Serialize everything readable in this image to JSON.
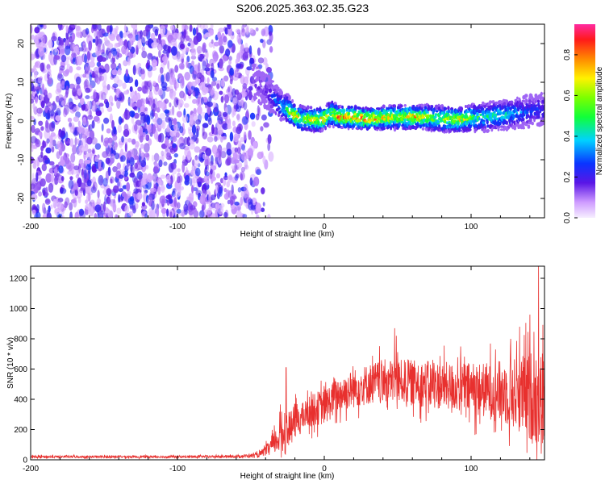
{
  "title": "S206.2025.363.02.35.G23",
  "colors": {
    "snr_line": "#e8302e",
    "spectrum_noise": "#7a2cf0",
    "axis": "#000000"
  },
  "chart_data": [
    {
      "type": "heatmap",
      "title": "S206.2025.363.02.35.G23",
      "xlabel": "Height of straight line (km)",
      "ylabel": "Frequency (Hz)",
      "xlim": [
        -200,
        150
      ],
      "ylim": [
        -25,
        25
      ],
      "x_ticks": [
        -200,
        -100,
        0,
        100
      ],
      "x_tick_labels": [
        "-200",
        "-100",
        "0",
        "100"
      ],
      "y_ticks": [
        -20,
        -10,
        0,
        10,
        20
      ],
      "y_tick_labels": [
        "-20",
        "-10",
        "0",
        "10",
        "20"
      ],
      "noise_region_x": [
        -200,
        -48
      ],
      "signal_track": {
        "x": [
          -48,
          -40,
          -35,
          -30,
          -25,
          -20,
          -15,
          -10,
          -5,
          0,
          5,
          10,
          20,
          30,
          40,
          50,
          60,
          70,
          80,
          90,
          100,
          110,
          120,
          130,
          140,
          150
        ],
        "freq": [
          10,
          8,
          6,
          4,
          3,
          1.5,
          0.5,
          0.5,
          0.3,
          0.5,
          2,
          1,
          1,
          0.5,
          0.8,
          1,
          1,
          1,
          0.5,
          0.3,
          0.8,
          1,
          1.5,
          2,
          2.5,
          3
        ],
        "amplitude": [
          0.15,
          0.2,
          0.3,
          0.4,
          0.5,
          0.9,
          0.6,
          0.8,
          0.7,
          0.9,
          0.6,
          0.9,
          0.8,
          0.95,
          0.8,
          0.7,
          0.85,
          0.7,
          0.6,
          0.8,
          0.6,
          0.5,
          0.5,
          0.4,
          0.3,
          0.3
        ]
      },
      "colorbar": {
        "label": "Normalized spectral amplitude",
        "range": [
          0,
          0.95
        ],
        "ticks": [
          0.0,
          0.2,
          0.4,
          0.6,
          0.8
        ],
        "tick_labels": [
          "0.0",
          "0.2",
          "0.4",
          "0.6",
          "0.8"
        ]
      }
    },
    {
      "type": "line",
      "xlabel": "Height of straight line (km)",
      "ylabel": "SNR (10 * v/v)",
      "xlim": [
        -200,
        150
      ],
      "ylim": [
        0,
        1280
      ],
      "x_ticks": [
        -200,
        -100,
        0,
        100
      ],
      "x_tick_labels": [
        "-200",
        "-100",
        "0",
        "100"
      ],
      "y_ticks": [
        0,
        200,
        400,
        600,
        800,
        1000,
        1200
      ],
      "y_tick_labels": [
        "0",
        "200",
        "400",
        "600",
        "800",
        "1000",
        "1200"
      ],
      "series": [
        {
          "name": "SNR",
          "envelope": {
            "x": [
              -200,
              -150,
              -100,
              -60,
              -45,
              -40,
              -35,
              -30,
              -28,
              -25,
              -22,
              -20,
              -15,
              -10,
              -5,
              0,
              10,
              20,
              30,
              40,
              50,
              60,
              70,
              80,
              90,
              100,
              110,
              120,
              130,
              140,
              148
            ],
            "baseline": [
              20,
              20,
              20,
              22,
              30,
              60,
              100,
              160,
              200,
              190,
              220,
              260,
              280,
              320,
              340,
              350,
              430,
              470,
              500,
              520,
              520,
              510,
              500,
              490,
              480,
              470,
              460,
              450,
              440,
              420,
              400
            ],
            "amplitude": [
              10,
              10,
              10,
              10,
              20,
              40,
              80,
              150,
              250,
              130,
              140,
              150,
              120,
              130,
              140,
              150,
              150,
              160,
              170,
              180,
              180,
              190,
              190,
              200,
              200,
              220,
              230,
              260,
              300,
              380,
              420
            ]
          },
          "peaks": [
            {
              "x": -26,
              "y": 610
            },
            {
              "x": 48,
              "y": 870
            },
            {
              "x": 49,
              "y": 820
            },
            {
              "x": 146,
              "y": 1280
            },
            {
              "x": 140,
              "y": 960
            },
            {
              "x": 133,
              "y": 880
            },
            {
              "x": 127,
              "y": 800
            }
          ]
        }
      ]
    }
  ]
}
